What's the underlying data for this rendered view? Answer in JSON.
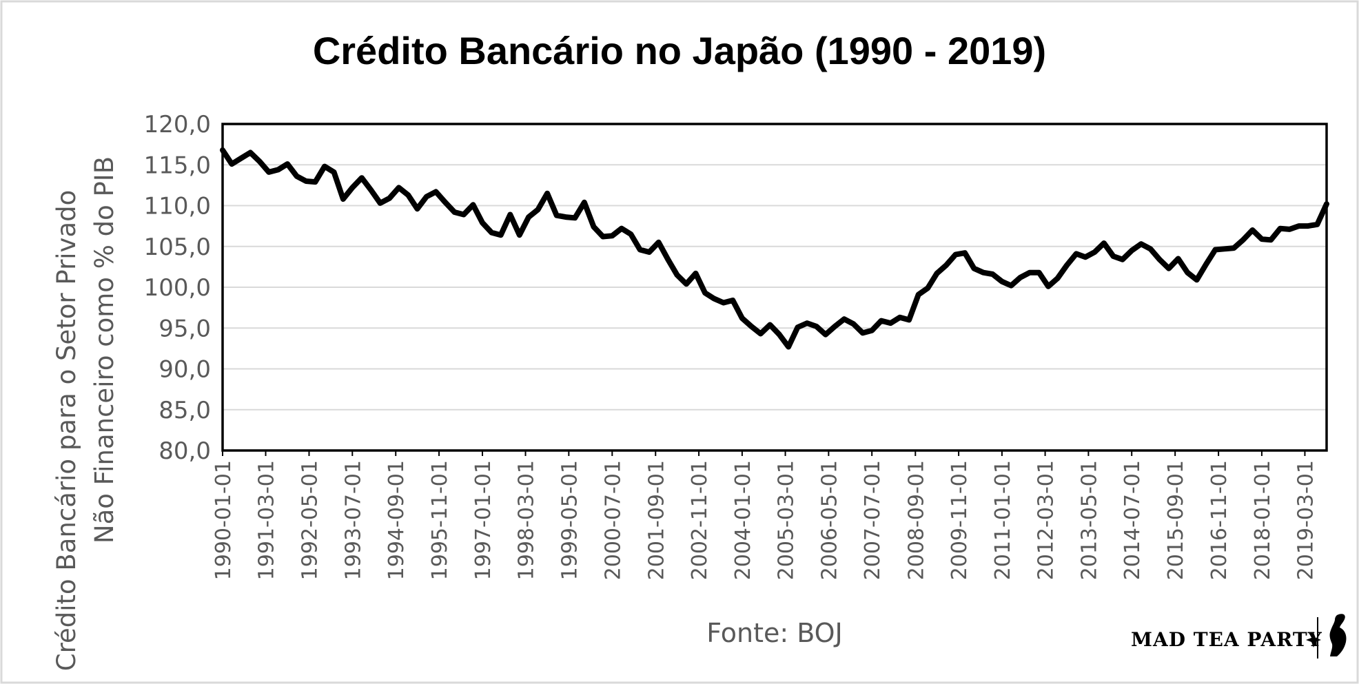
{
  "chart_data": {
    "type": "line",
    "title": "Crédito Bancário no Japão (1990 - 2019)",
    "ylabel_line1": "Crédito Bancário para o Setor Privado",
    "ylabel_line2": "Não Financeiro como % do PIB",
    "source_note": "Fonte: BOJ",
    "ylim": [
      80,
      120
    ],
    "y_ticks": [
      "80,0",
      "85,0",
      "90,0",
      "95,0",
      "100,0",
      "105,0",
      "110,0",
      "115,0",
      "120,0"
    ],
    "x_range": [
      "1990-01-01",
      "2019-10-01"
    ],
    "x_ticks": [
      "1990-01-01",
      "1991-03-01",
      "1992-05-01",
      "1993-07-01",
      "1994-09-01",
      "1995-11-01",
      "1997-01-01",
      "1998-03-01",
      "1999-05-01",
      "2000-07-01",
      "2001-09-01",
      "2002-11-01",
      "2004-01-01",
      "2005-03-01",
      "2006-05-01",
      "2007-07-01",
      "2008-09-01",
      "2009-11-01",
      "2011-01-01",
      "2012-03-01",
      "2013-05-01",
      "2014-07-01",
      "2015-09-01",
      "2016-11-01",
      "2018-01-01",
      "2019-03-01"
    ],
    "grid": "horizontal",
    "series": [
      {
        "color": "#000000",
        "x": [
          "1990-01-01",
          "1990-04-01",
          "1990-07-01",
          "1990-10-01",
          "1991-01-01",
          "1991-04-01",
          "1991-07-01",
          "1991-10-01",
          "1992-01-01",
          "1992-04-01",
          "1992-07-01",
          "1992-10-01",
          "1993-01-01",
          "1993-04-01",
          "1993-07-01",
          "1993-10-01",
          "1994-01-01",
          "1994-04-01",
          "1994-07-01",
          "1994-10-01",
          "1995-01-01",
          "1995-04-01",
          "1995-07-01",
          "1995-10-01",
          "1996-01-01",
          "1996-04-01",
          "1996-07-01",
          "1996-10-01",
          "1997-01-01",
          "1997-04-01",
          "1997-07-01",
          "1997-10-01",
          "1998-01-01",
          "1998-04-01",
          "1998-07-01",
          "1998-10-01",
          "1999-01-01",
          "1999-04-01",
          "1999-07-01",
          "1999-10-01",
          "2000-01-01",
          "2000-04-01",
          "2000-07-01",
          "2000-10-01",
          "2001-01-01",
          "2001-04-01",
          "2001-07-01",
          "2001-10-01",
          "2002-01-01",
          "2002-04-01",
          "2002-07-01",
          "2002-10-01",
          "2003-01-01",
          "2003-04-01",
          "2003-07-01",
          "2003-10-01",
          "2004-01-01",
          "2004-04-01",
          "2004-07-01",
          "2004-10-01",
          "2005-01-01",
          "2005-04-01",
          "2005-07-01",
          "2005-10-01",
          "2006-01-01",
          "2006-04-01",
          "2006-07-01",
          "2006-10-01",
          "2007-01-01",
          "2007-04-01",
          "2007-07-01",
          "2007-10-01",
          "2008-01-01",
          "2008-04-01",
          "2008-07-01",
          "2008-10-01",
          "2009-01-01",
          "2009-04-01",
          "2009-07-01",
          "2009-10-01",
          "2010-01-01",
          "2010-04-01",
          "2010-07-01",
          "2010-10-01",
          "2011-01-01",
          "2011-04-01",
          "2011-07-01",
          "2011-10-01",
          "2012-01-01",
          "2012-04-01",
          "2012-07-01",
          "2012-10-01",
          "2013-01-01",
          "2013-04-01",
          "2013-07-01",
          "2013-10-01",
          "2014-01-01",
          "2014-04-01",
          "2014-07-01",
          "2014-10-01",
          "2015-01-01",
          "2015-04-01",
          "2015-07-01",
          "2015-10-01",
          "2016-01-01",
          "2016-04-01",
          "2016-07-01",
          "2016-10-01",
          "2017-01-01",
          "2017-04-01",
          "2017-07-01",
          "2017-10-01",
          "2018-01-01",
          "2018-04-01",
          "2018-07-01",
          "2018-10-01",
          "2019-01-01",
          "2019-04-01",
          "2019-07-01",
          "2019-10-01"
        ],
        "values": [
          116.8,
          115.1,
          115.8,
          116.5,
          115.4,
          114.1,
          114.4,
          115.1,
          113.6,
          113.0,
          112.9,
          114.8,
          114.1,
          110.8,
          112.2,
          113.4,
          111.9,
          110.3,
          110.9,
          112.2,
          111.3,
          109.6,
          111.1,
          111.7,
          110.4,
          109.2,
          108.9,
          110.1,
          107.9,
          106.7,
          106.4,
          108.9,
          106.4,
          108.6,
          109.5,
          111.5,
          108.8,
          108.6,
          108.5,
          110.4,
          107.4,
          106.2,
          106.3,
          107.2,
          106.5,
          104.6,
          104.3,
          105.5,
          103.4,
          101.5,
          100.4,
          101.7,
          99.3,
          98.6,
          98.1,
          98.4,
          96.2,
          95.2,
          94.3,
          95.4,
          94.2,
          92.7,
          95.1,
          95.6,
          95.2,
          94.2,
          95.2,
          96.1,
          95.5,
          94.4,
          94.7,
          95.9,
          95.6,
          96.3,
          96.0,
          99.1,
          99.9,
          101.7,
          102.7,
          104.0,
          104.2,
          102.3,
          101.8,
          101.6,
          100.7,
          100.2,
          101.2,
          101.8,
          101.8,
          100.1,
          101.1,
          102.7,
          104.1,
          103.7,
          104.3,
          105.4,
          103.8,
          103.4,
          104.5,
          105.3,
          104.7,
          103.4,
          102.3,
          103.5,
          101.8,
          100.9,
          102.8,
          104.6,
          104.7,
          104.8,
          105.8,
          107.0,
          105.9,
          105.8,
          107.2,
          107.1,
          107.5,
          107.5,
          107.7,
          110.2
        ]
      }
    ]
  },
  "brand": {
    "text": "MAD TEA PARTY",
    "icon": "rabbit-silhouette-icon"
  }
}
